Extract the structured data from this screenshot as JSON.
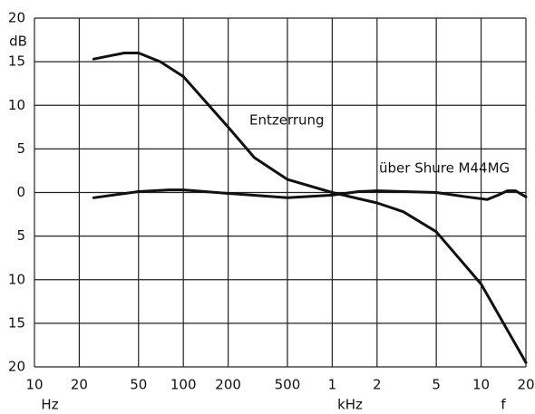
{
  "chart_data": {
    "type": "line",
    "y_label": "dB",
    "x_label_left": "Hz",
    "x_label_mid": "kHz",
    "x_label_right": "f",
    "annotations": [
      "Entzerrung",
      "über Shure M44MG"
    ],
    "xscale": "log",
    "grid": true,
    "color": "#111111",
    "xlim": [
      10,
      20000
    ],
    "xticks": [
      10,
      20,
      50,
      100,
      200,
      500,
      {
        "value": 1000,
        "label": "1"
      },
      {
        "value": 2000,
        "label": "2"
      },
      {
        "value": 5000,
        "label": "5"
      },
      {
        "value": 10000,
        "label": "10"
      },
      {
        "value": 20000,
        "label": "20"
      }
    ],
    "ylim": [
      -20,
      20
    ],
    "yticks": [
      20,
      15,
      10,
      5,
      0,
      {
        "value": -5,
        "label": "5"
      },
      {
        "value": -10,
        "label": "10"
      },
      {
        "value": -15,
        "label": "15"
      },
      {
        "value": -20,
        "label": "20"
      }
    ],
    "series": [
      {
        "name": "Entzerrung",
        "color": "#111111",
        "x": [
          25,
          40,
          50,
          70,
          100,
          200,
          300,
          500,
          1000,
          2000,
          3000,
          5000,
          10000,
          20000
        ],
        "values": [
          15.3,
          16,
          16,
          15,
          13.3,
          7.5,
          4,
          1.5,
          0,
          -1.2,
          -2.2,
          -4.5,
          -10.5,
          -19.5
        ]
      },
      {
        "name": "über Shure M44MG",
        "color": "#111111",
        "x": [
          25,
          50,
          80,
          100,
          200,
          500,
          1000,
          1500,
          2000,
          5000,
          8000,
          11000,
          13000,
          15000,
          17000,
          20000
        ],
        "values": [
          -0.6,
          0.1,
          0.3,
          0.3,
          -0.1,
          -0.6,
          -0.3,
          0.1,
          0.2,
          0,
          -0.5,
          -0.8,
          -0.3,
          0.2,
          0.2,
          -0.5
        ]
      }
    ]
  }
}
